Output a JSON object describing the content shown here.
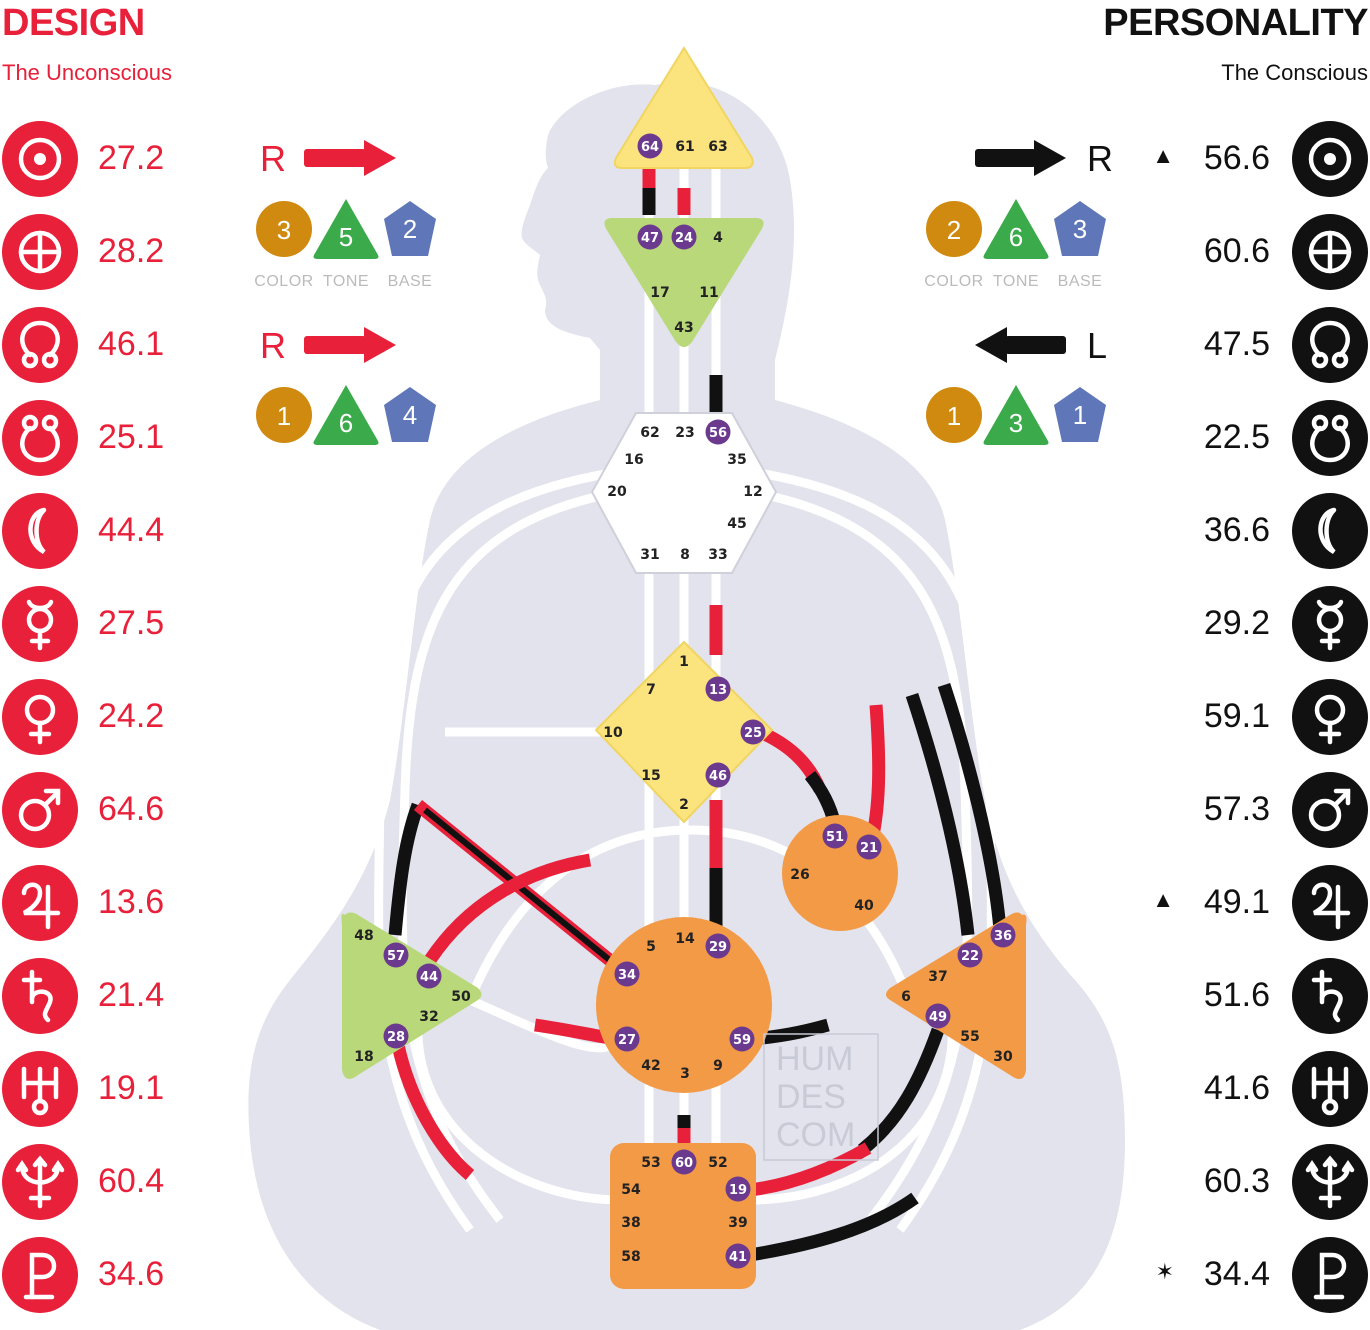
{
  "design": {
    "title": "DESIGN",
    "subtitle": "The Unconscious",
    "color": "#e8203a",
    "planets": [
      {
        "icon": "sun-icon",
        "value": "27.2"
      },
      {
        "icon": "earth-icon",
        "value": "28.2"
      },
      {
        "icon": "north-node-icon",
        "value": "46.1"
      },
      {
        "icon": "south-node-icon",
        "value": "25.1"
      },
      {
        "icon": "moon-icon",
        "value": "44.4"
      },
      {
        "icon": "mercury-icon",
        "value": "27.5"
      },
      {
        "icon": "venus-icon",
        "value": "24.2"
      },
      {
        "icon": "mars-icon",
        "value": "64.6"
      },
      {
        "icon": "jupiter-icon",
        "value": "13.6"
      },
      {
        "icon": "saturn-icon",
        "value": "21.4"
      },
      {
        "icon": "uranus-icon",
        "value": "19.1"
      },
      {
        "icon": "neptune-icon",
        "value": "60.4"
      },
      {
        "icon": "pluto-icon",
        "value": "34.6"
      }
    ],
    "arrows": [
      {
        "dir": "R",
        "color": "3",
        "tone": "5",
        "base": "2"
      },
      {
        "dir": "R",
        "color": "1",
        "tone": "6",
        "base": "4"
      }
    ]
  },
  "personality": {
    "title": "PERSONALITY",
    "subtitle": "The Conscious",
    "color": "#111111",
    "planets": [
      {
        "icon": "sun-icon",
        "value": "56.6",
        "mark": "▲"
      },
      {
        "icon": "earth-icon",
        "value": "60.6",
        "mark": ""
      },
      {
        "icon": "north-node-icon",
        "value": "47.5",
        "mark": ""
      },
      {
        "icon": "south-node-icon",
        "value": "22.5",
        "mark": ""
      },
      {
        "icon": "moon-icon",
        "value": "36.6",
        "mark": ""
      },
      {
        "icon": "mercury-icon",
        "value": "29.2",
        "mark": ""
      },
      {
        "icon": "venus-icon",
        "value": "59.1",
        "mark": ""
      },
      {
        "icon": "mars-icon",
        "value": "57.3",
        "mark": ""
      },
      {
        "icon": "jupiter-icon",
        "value": "49.1",
        "mark": "▲"
      },
      {
        "icon": "saturn-icon",
        "value": "51.6",
        "mark": ""
      },
      {
        "icon": "uranus-icon",
        "value": "41.6",
        "mark": ""
      },
      {
        "icon": "neptune-icon",
        "value": "60.3",
        "mark": ""
      },
      {
        "icon": "pluto-icon",
        "value": "34.4",
        "mark": "✶"
      }
    ],
    "arrows": [
      {
        "dir": "R",
        "color": "2",
        "tone": "6",
        "base": "3"
      },
      {
        "dir": "L",
        "color": "1",
        "tone": "3",
        "base": "1"
      }
    ]
  },
  "variable_labels": {
    "color": "COLOR",
    "tone": "TONE",
    "base": "BASE"
  },
  "watermark": [
    "HUM",
    "DES",
    "COM"
  ],
  "centers": {
    "head": {
      "fill": "#fbe37e",
      "gates": [
        "64",
        "61",
        "63"
      ],
      "active": [
        "64"
      ]
    },
    "ajna": {
      "fill": "#b9d87a",
      "gates": [
        "47",
        "24",
        "4",
        "17",
        "11",
        "43"
      ],
      "active": [
        "47",
        "24"
      ]
    },
    "throat": {
      "fill": "#ffffff",
      "gates": [
        "62",
        "23",
        "56",
        "16",
        "35",
        "20",
        "12",
        "45",
        "31",
        "8",
        "33"
      ],
      "active": [
        "56"
      ]
    },
    "g": {
      "fill": "#fbe37e",
      "gates": [
        "1",
        "7",
        "13",
        "10",
        "25",
        "15",
        "46",
        "2"
      ],
      "active": [
        "13",
        "25",
        "46"
      ]
    },
    "ego": {
      "fill": "#f39a47",
      "gates": [
        "51",
        "21",
        "26",
        "40"
      ],
      "active": [
        "51",
        "21"
      ]
    },
    "spleen": {
      "fill": "#b9d87a",
      "gates": [
        "48",
        "57",
        "44",
        "50",
        "32",
        "28",
        "18"
      ],
      "active": [
        "57",
        "44",
        "28"
      ]
    },
    "sacral": {
      "fill": "#f39a47",
      "gates": [
        "5",
        "14",
        "29",
        "34",
        "27",
        "59",
        "42",
        "3",
        "9"
      ],
      "active": [
        "29",
        "34",
        "27",
        "59"
      ]
    },
    "solar_plexus": {
      "fill": "#f39a47",
      "gates": [
        "36",
        "22",
        "37",
        "6",
        "49",
        "55",
        "30"
      ],
      "active": [
        "36",
        "22",
        "49"
      ]
    },
    "root": {
      "fill": "#f39a47",
      "gates": [
        "53",
        "60",
        "52",
        "54",
        "19",
        "38",
        "39",
        "58",
        "41"
      ],
      "active": [
        "60",
        "19",
        "41"
      ]
    }
  },
  "colors": {
    "design": "#e8203a",
    "personality": "#111111",
    "active_gate": "#6b3a8e",
    "body": "#e2e3ec",
    "color_badge": "#d08a10",
    "tone_badge": "#3aaa4a",
    "base_badge": "#5f77b8"
  }
}
